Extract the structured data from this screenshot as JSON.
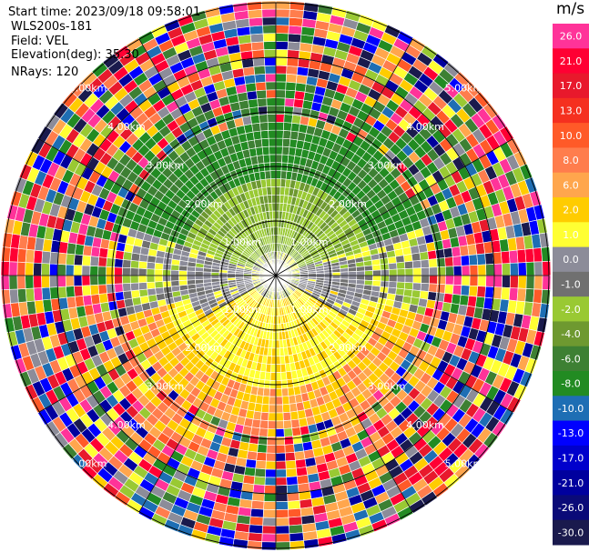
{
  "header": {
    "start_time": "Start time: 2023/09/18 09:58:01",
    "instrument": "WLS200s-181",
    "field": "Field: VEL",
    "elevation": "Elevation(deg): 35.30",
    "nrays": "NRays: 120"
  },
  "colorbar": {
    "unit": "m/s",
    "ticks": [
      "26.0",
      "21.0",
      "17.0",
      "13.0",
      "10.0",
      "8.0",
      "6.0",
      "2.0",
      "1.0",
      "0.0",
      "-1.0",
      "-2.0",
      "-4.0",
      "-6.0",
      "-8.0",
      "-10.0",
      "-13.0",
      "-17.0",
      "-21.0",
      "-26.0",
      "-30.0"
    ],
    "colors": [
      "#ff3399",
      "#ff0033",
      "#e8192c",
      "#f5301f",
      "#ff5a28",
      "#ff7d4d",
      "#ffa64d",
      "#ffcc00",
      "#ffff33",
      "#8c8c99",
      "#707070",
      "#99c933",
      "#6e9930",
      "#3d8033",
      "#228b22",
      "#1e6eb4",
      "#0000ff",
      "#0000cc",
      "#00009e",
      "#0a0a78",
      "#1a1a4d"
    ]
  },
  "chart_data": {
    "type": "ppi-scan",
    "field": "VEL",
    "units": "m/s",
    "nrays": 120,
    "elevation_deg": 35.3,
    "range_ring_labels": [
      "1.00km",
      "2.00km",
      "3.00km",
      "4.00km",
      "5.00km"
    ]
  }
}
